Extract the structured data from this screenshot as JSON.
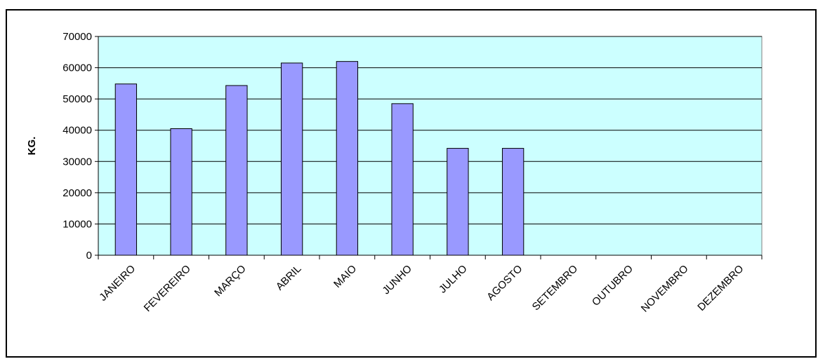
{
  "chart_data": {
    "type": "bar",
    "title": "",
    "xlabel": "",
    "ylabel": "KG.",
    "ylim": [
      0,
      70000
    ],
    "yticks": [
      0,
      10000,
      20000,
      30000,
      40000,
      50000,
      60000,
      70000
    ],
    "grid": true,
    "legend": "none",
    "categories": [
      "JANEIRO",
      "FEVEREIRO",
      "MARÇO",
      "ABRIL",
      "MAIO",
      "JUNHO",
      "JULHO",
      "AGOSTO",
      "SETEMBRO",
      "OUTUBRO",
      "NOVEMBRO",
      "DEZEMBRO"
    ],
    "values": [
      54800,
      40500,
      54300,
      61500,
      62000,
      48500,
      34200,
      34200,
      null,
      null,
      null,
      null
    ],
    "colors": {
      "plot_bg": "#ccffff",
      "bar": "#9999ff",
      "grid": "#000000"
    }
  }
}
